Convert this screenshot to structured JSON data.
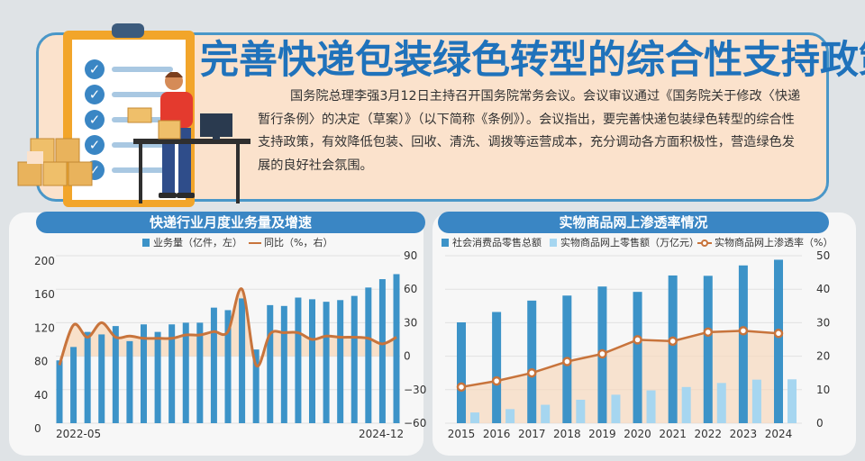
{
  "header": {
    "title": "完善快递包装绿色转型的综合性支持政策",
    "intro": "国务院总理李强3月12日主持召开国务院常务会议。会议审议通过《国务院关于修改〈快递暂行条例〉的决定（草案）》（以下简称《条例》）。会议指出，要完善快递包装绿色转型的综合性支持政策，有效降低包装、回收、清洗、调拨等运营成本，充分调动各方面积极性，营造绿色发展的良好社会氛围。"
  },
  "colors": {
    "bar_dark": "#3c93c8",
    "bar_light": "#a6d6f0",
    "line": "#c8743c",
    "area": "#f7d9bd",
    "header_bg": "#3a86c4",
    "title": "#1f72bb"
  },
  "chart_data": [
    {
      "type": "bar",
      "title": "快递行业月度业务量及增速",
      "series": [
        {
          "name": "业务量（亿件，左）",
          "type": "bar",
          "axis": "left",
          "values": [
            75,
            91,
            109,
            106,
            116,
            98,
            118,
            109,
            118,
            120,
            120,
            138,
            135,
            149,
            88,
            141,
            140,
            150,
            148,
            145,
            147,
            152,
            162,
            172,
            178
          ]
        },
        {
          "name": "同比（%，右）",
          "type": "line",
          "axis": "right",
          "values": [
            -8,
            28,
            17,
            30,
            17,
            18,
            16,
            16,
            16,
            19,
            19,
            22,
            22,
            60,
            -8,
            20,
            21,
            21,
            15,
            18,
            17,
            17,
            16,
            11,
            17
          ]
        }
      ],
      "x_first_label": "2022-05",
      "x_last_label": "2024-12",
      "left_ticks": [
        "200",
        "160",
        "120",
        "80",
        "40",
        "0"
      ],
      "right_ticks": [
        "90",
        "60",
        "30",
        "0",
        "−30",
        "−60"
      ],
      "ylim_left": [
        0,
        200
      ],
      "ylim_right": [
        -60,
        90
      ]
    },
    {
      "type": "bar",
      "title": "实物商品网上渗透率情况",
      "categories": [
        "2015",
        "2016",
        "2017",
        "2018",
        "2019",
        "2020",
        "2021",
        "2022",
        "2023",
        "2024"
      ],
      "series": [
        {
          "name": "社会消费品零售总额",
          "type": "bar",
          "axis": "right",
          "values": [
            30.1,
            33.2,
            36.6,
            38.1,
            40.8,
            39.2,
            44.1,
            44.0,
            47.1,
            48.8
          ]
        },
        {
          "name": "实物商品网上零售额（万亿元）",
          "type": "bar",
          "axis": "right",
          "values": [
            3.2,
            4.2,
            5.5,
            7.0,
            8.5,
            9.8,
            10.8,
            12.0,
            13.0,
            13.1
          ]
        },
        {
          "name": "实物商品网上渗透率（%）",
          "type": "line",
          "axis": "right",
          "values": [
            10.8,
            12.6,
            15.0,
            18.4,
            20.7,
            24.9,
            24.5,
            27.2,
            27.6,
            26.8
          ]
        }
      ],
      "right_ticks": [
        "50",
        "40",
        "30",
        "20",
        "10",
        "0"
      ],
      "ylim": [
        0,
        50
      ]
    }
  ]
}
